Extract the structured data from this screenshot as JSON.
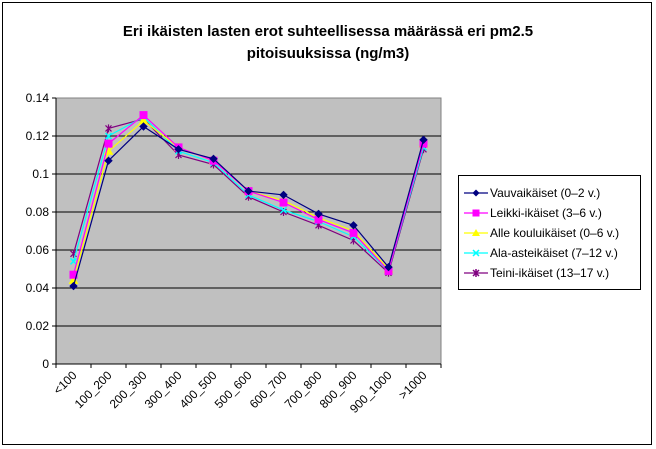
{
  "chart_data": {
    "type": "line",
    "title_line1": "Eri ikäisten lasten erot suhteellisessa määrässä eri pm2.5",
    "title_line2": "pitoisuuksissa (ng/m3)",
    "categories": [
      "<100",
      "100_200",
      "200_300",
      "300_400",
      "400_500",
      "500_600",
      "600_700",
      "700_800",
      "800_900",
      "900_1000",
      ">1000"
    ],
    "ylim": [
      0,
      0.14
    ],
    "yticks": [
      0,
      0.02,
      0.04,
      0.06,
      0.08,
      0.1,
      0.12,
      0.14
    ],
    "ytick_labels": [
      "0",
      "0.02",
      "0.04",
      "0.06",
      "0.08",
      "0.1",
      "0.12",
      "0.14"
    ],
    "grid": true,
    "legend_position": "right",
    "plot_background": "#C0C0C0",
    "series": [
      {
        "name": "Vauvaikäiset (0–2 v.)",
        "color": "#000080",
        "marker": "diamond",
        "values": [
          0.041,
          0.107,
          0.125,
          0.113,
          0.108,
          0.091,
          0.089,
          0.079,
          0.073,
          0.051,
          0.118
        ]
      },
      {
        "name": "Leikki-ikäiset (3–6 v.)",
        "color": "#FF00FF",
        "marker": "square",
        "values": [
          0.047,
          0.116,
          0.131,
          0.114,
          0.107,
          0.091,
          0.085,
          0.076,
          0.069,
          0.049,
          0.116
        ]
      },
      {
        "name": "Alle kouluikäiset (0–6 v.)",
        "color": "#FFFF00",
        "marker": "triangle",
        "values": [
          0.044,
          0.112,
          0.128,
          0.114,
          0.107,
          0.091,
          0.086,
          0.077,
          0.07,
          0.05,
          0.116
        ]
      },
      {
        "name": "Ala-asteikäiset (7–12 v.)",
        "color": "#00FFFF",
        "marker": "x",
        "values": [
          0.054,
          0.12,
          0.13,
          0.112,
          0.106,
          0.089,
          0.081,
          0.075,
          0.067,
          0.049,
          0.114
        ]
      },
      {
        "name": "Teini-ikäiset (13–17 v.)",
        "color": "#800080",
        "marker": "star",
        "values": [
          0.058,
          0.124,
          0.129,
          0.11,
          0.105,
          0.088,
          0.08,
          0.073,
          0.065,
          0.048,
          0.113
        ]
      }
    ]
  }
}
